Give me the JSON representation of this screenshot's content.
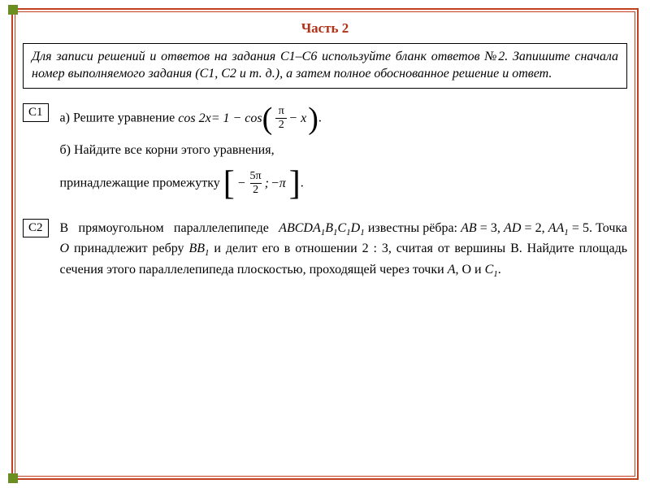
{
  "colors": {
    "border_primary": "#c04020",
    "corner_accent": "#6b8e23",
    "title_color": "#b03018",
    "text_color": "#000000",
    "background": "#ffffff"
  },
  "typography": {
    "body_fontsize": 16,
    "title_fontsize": 17,
    "font_family": "Georgia, Times New Roman, serif"
  },
  "title": "Часть 2",
  "instruction": "Для записи решений и ответов на задания С1–С6 используйте бланк ответов №2. Запишите сначала номер выполняемого задания (С1, С2 и т. д.), а затем полное обоснованное решение и ответ.",
  "tasks": [
    {
      "label": "С1",
      "part_a_prefix": "а) Решите уравнение ",
      "equation_lhs": "cos 2x",
      "equation_rhs_prefix": " = 1 − cos",
      "paren_inner_frac_num": "π",
      "paren_inner_frac_den": "2",
      "paren_inner_suffix": " − x",
      "part_a_suffix": ".",
      "part_b_line1": "б) Найдите все корни этого уравнения,",
      "part_b_line2_prefix": "принадлежащие промежутку ",
      "interval_left_frac_num": "5π",
      "interval_left_frac_den": "2",
      "interval_left_sign": "−",
      "interval_sep": " ; ",
      "interval_right_sign": "−",
      "interval_right": "π",
      "part_b_suffix": "."
    },
    {
      "label": "С2",
      "body": "В прямоугольном параллелепипеде ABCDA₁B₁C₁D₁ известны рёбра: AB = 3, AD = 2, AA₁ = 5. Точка O принадлежит ребру BB₁ и делит его в отношении 2 : 3, считая от вершины B. Найдите площадь сечения этого параллелепипеда плоскостью, проходящей через точки A, O и C₁."
    }
  ]
}
